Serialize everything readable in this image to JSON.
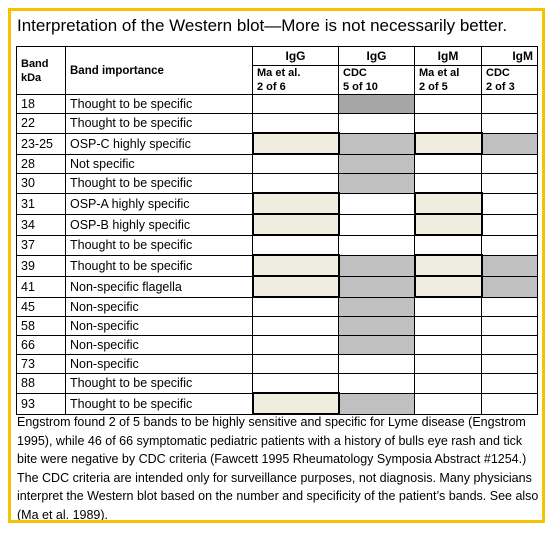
{
  "title": "Interpretation of the Western blot—More is not necessarily better.",
  "header": {
    "band_line1": "Band",
    "band_line2": "kDa",
    "importance": "Band importance",
    "columns": [
      {
        "ab": "IgG",
        "src": "Ma et al.",
        "ratio": "2 of 6"
      },
      {
        "ab": "IgG",
        "src": "CDC",
        "ratio": "5 of 10"
      },
      {
        "ab": "IgM",
        "src": "Ma et al",
        "ratio": "2 of 5"
      },
      {
        "ab": "IgM",
        "src": "CDC",
        "ratio": "2 of 3"
      }
    ]
  },
  "rows": [
    {
      "band": "18",
      "importance": "Thought to be specific",
      "marks": [
        "",
        "dark",
        "",
        ""
      ]
    },
    {
      "band": "22",
      "importance": "Thought to be specific",
      "marks": [
        "",
        "",
        "",
        ""
      ]
    },
    {
      "band": "23-25",
      "importance": "OSP-C highly specific",
      "marks": [
        "beige",
        "gray",
        "beige",
        "gray"
      ]
    },
    {
      "band": "28",
      "importance": "Not specific",
      "marks": [
        "",
        "gray",
        "",
        ""
      ]
    },
    {
      "band": "30",
      "importance": "Thought to be specific",
      "marks": [
        "",
        "gray",
        "",
        ""
      ]
    },
    {
      "band": "31",
      "importance": "OSP-A highly specific",
      "marks": [
        "beige",
        "",
        "beige",
        ""
      ]
    },
    {
      "band": "34",
      "importance": "OSP-B highly specific",
      "marks": [
        "beige",
        "",
        "beige",
        ""
      ]
    },
    {
      "band": "37",
      "importance": "Thought to be specific",
      "marks": [
        "",
        "",
        "",
        ""
      ]
    },
    {
      "band": "39",
      "importance": "Thought to be specific",
      "marks": [
        "beige",
        "gray",
        "beige",
        "gray"
      ]
    },
    {
      "band": "41",
      "importance": "Non-specific flagella",
      "marks": [
        "beige",
        "gray",
        "beige",
        "gray"
      ]
    },
    {
      "band": "45",
      "importance": "Non-specific",
      "marks": [
        "",
        "gray",
        "",
        ""
      ]
    },
    {
      "band": "58",
      "importance": "Non-specific",
      "marks": [
        "",
        "gray",
        "",
        ""
      ]
    },
    {
      "band": "66",
      "importance": "Non-specific",
      "marks": [
        "",
        "gray",
        "",
        ""
      ]
    },
    {
      "band": "73",
      "importance": "Non-specific",
      "marks": [
        "",
        "",
        "",
        ""
      ]
    },
    {
      "band": "88",
      "importance": "Thought to be specific",
      "marks": [
        "",
        "",
        "",
        ""
      ]
    },
    {
      "band": "93",
      "importance": "Thought to be specific",
      "marks": [
        "beige",
        "gray",
        "",
        ""
      ]
    }
  ],
  "caption": "Engstrom found 2 of 5 bands to be highly sensitive and specific for Lyme disease (Engstrom 1995), while 46 of 66 symptomatic pediatric patients with a history of bulls eye rash and tick bite were negative by CDC criteria (Fawcett 1995 Rheumatology Symposia Abstract #1254.) The CDC criteria are intended only for surveillance purposes, not diagnosis. Many physicians interpret the Western blot based on the number and specificity of the patient’s bands. See also (Ma et al. 1989).",
  "colors": {
    "border": "#f5c400",
    "beige": "#efece0",
    "gray": "#c0c0c0",
    "dark_gray": "#a6a6a6"
  }
}
